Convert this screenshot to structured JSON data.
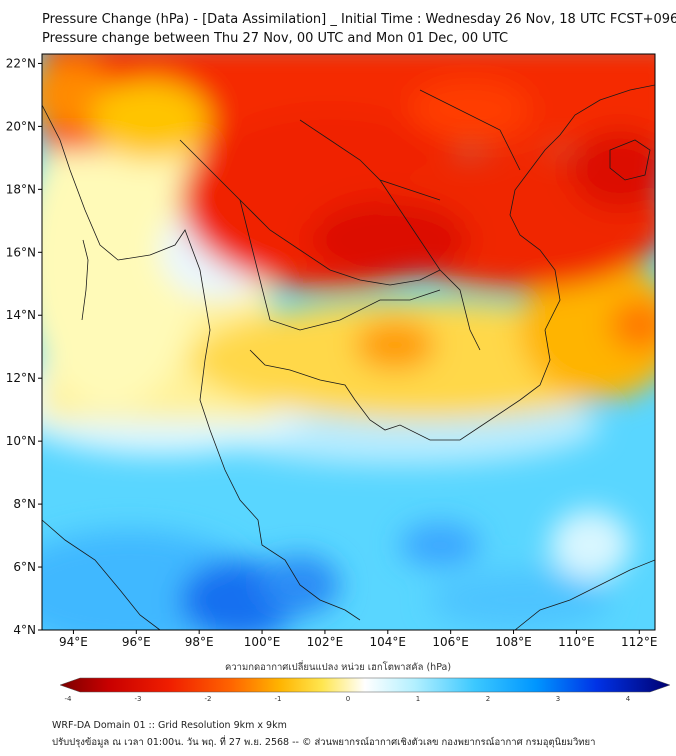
{
  "header": {
    "title": "Pressure Change (hPa) - [Data Assimilation] _ Initial Time : Wednesday 26 Nov, 18 UTC FCST+096",
    "subtitle": "Pressure change between Thu 27 Nov, 00 UTC and Mon 01 Dec, 00 UTC"
  },
  "map": {
    "lat_labels": [
      "22°N",
      "20°N",
      "18°N",
      "16°N",
      "14°N",
      "12°N",
      "10°N",
      "8°N",
      "6°N",
      "4°N"
    ],
    "lon_labels": [
      "94°E",
      "96°E",
      "98°E",
      "100°E",
      "102°E",
      "104°E",
      "106°E",
      "108°E",
      "110°E",
      "112°E"
    ],
    "lat_range": [
      4,
      22.3
    ],
    "lon_range": [
      93,
      112.5
    ]
  },
  "colorbar": {
    "label": "ความกดอากาศเปลี่ยนแปลง หน่วย เฮกโตพาสคัล (hPa)",
    "ticks": [
      "-4",
      "-3",
      "-2",
      "-1",
      "0",
      "1",
      "2",
      "3",
      "4"
    ],
    "range": [
      -4.6,
      4.6
    ],
    "colors": [
      "#7a0000",
      "#c80000",
      "#f01e00",
      "#ff5a00",
      "#ff9600",
      "#ffd200",
      "#ffff96",
      "#ffffff",
      "#b4f0ff",
      "#3cc8ff",
      "#0096ff",
      "#0046f0",
      "#0000b4",
      "#000070"
    ]
  },
  "footer": {
    "line1": "WRF-DA Domain 01 :: Grid Resolution 9km x 9km",
    "line2": "ปรับปรุงข้อมูล ณ เวลา 01:00น. วัน พฤ. ที่ 27 พ.ย. 2568 -- © ส่วนพยากรณ์อากาศเชิงตัวเลข กองพยากรณ์อากาศ กรมอุตุนิยมวิทยา"
  }
}
